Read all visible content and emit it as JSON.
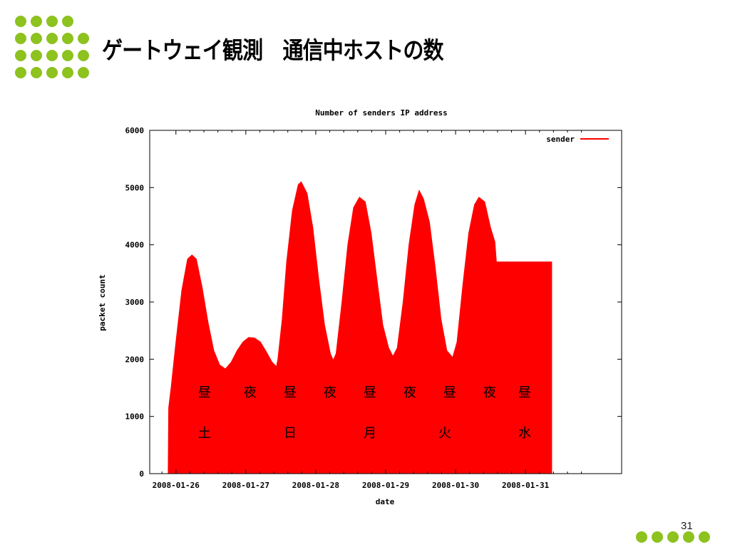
{
  "slide": {
    "title": "ゲートウェイ観測　通信中ホストの数",
    "page_number": "31",
    "accent_color": "#8dc21f",
    "decoration_icon": "dot-grid-icon"
  },
  "chart_data": {
    "type": "area",
    "title": "Number of senders IP address",
    "xlabel": "date",
    "ylabel": "packet count",
    "ylim": [
      0,
      6000
    ],
    "yticks": [
      0,
      1000,
      2000,
      3000,
      4000,
      5000,
      6000
    ],
    "xticks": [
      "2008-01-26",
      "2008-01-27",
      "2008-01-28",
      "2008-01-29",
      "2008-01-30",
      "2008-01-31"
    ],
    "x_unit": "days",
    "xlim": [
      "2008-01-25 15:00",
      "2008-02-01 09:00"
    ],
    "grid": false,
    "legend_position": "top-right",
    "fill_color": "#ff0000",
    "series": [
      {
        "name": "sender",
        "color": "#ff0000",
        "points": [
          [
            "2008-01-25 15:00",
            0
          ],
          [
            "2008-01-25 21:20",
            0
          ],
          [
            "2008-01-25 21:30",
            1150
          ],
          [
            "2008-01-25 22:20",
            1500
          ],
          [
            "2008-01-26 00:00",
            2300
          ],
          [
            "2008-01-26 02:00",
            3200
          ],
          [
            "2008-01-26 04:00",
            3750
          ],
          [
            "2008-01-26 05:30",
            3820
          ],
          [
            "2008-01-26 07:00",
            3750
          ],
          [
            "2008-01-26 09:00",
            3250
          ],
          [
            "2008-01-26 11:00",
            2650
          ],
          [
            "2008-01-26 13:00",
            2150
          ],
          [
            "2008-01-26 15:00",
            1900
          ],
          [
            "2008-01-26 17:00",
            1830
          ],
          [
            "2008-01-26 19:00",
            1950
          ],
          [
            "2008-01-26 21:00",
            2150
          ],
          [
            "2008-01-26 23:00",
            2300
          ],
          [
            "2008-01-27 01:00",
            2380
          ],
          [
            "2008-01-27 03:00",
            2370
          ],
          [
            "2008-01-27 05:00",
            2300
          ],
          [
            "2008-01-27 07:00",
            2130
          ],
          [
            "2008-01-27 09:00",
            1950
          ],
          [
            "2008-01-27 10:30",
            1870
          ],
          [
            "2008-01-27 11:00",
            2000
          ],
          [
            "2008-01-27 12:30",
            2700
          ],
          [
            "2008-01-27 14:00",
            3700
          ],
          [
            "2008-01-27 16:00",
            4600
          ],
          [
            "2008-01-27 18:00",
            5050
          ],
          [
            "2008-01-27 19:00",
            5100
          ],
          [
            "2008-01-27 21:00",
            4900
          ],
          [
            "2008-01-27 23:00",
            4300
          ],
          [
            "2008-01-28 01:00",
            3400
          ],
          [
            "2008-01-28 03:00",
            2600
          ],
          [
            "2008-01-28 05:00",
            2100
          ],
          [
            "2008-01-28 06:00",
            1980
          ],
          [
            "2008-01-28 07:00",
            2100
          ],
          [
            "2008-01-28 09:00",
            3000
          ],
          [
            "2008-01-28 11:00",
            4000
          ],
          [
            "2008-01-28 13:00",
            4650
          ],
          [
            "2008-01-28 15:00",
            4830
          ],
          [
            "2008-01-28 17:00",
            4750
          ],
          [
            "2008-01-28 19:00",
            4200
          ],
          [
            "2008-01-28 21:00",
            3400
          ],
          [
            "2008-01-28 23:00",
            2600
          ],
          [
            "2008-01-29 01:00",
            2200
          ],
          [
            "2008-01-29 02:30",
            2050
          ],
          [
            "2008-01-29 04:00",
            2200
          ],
          [
            "2008-01-29 06:00",
            3000
          ],
          [
            "2008-01-29 08:00",
            4000
          ],
          [
            "2008-01-29 10:00",
            4700
          ],
          [
            "2008-01-29 11:30",
            4950
          ],
          [
            "2008-01-29 13:00",
            4800
          ],
          [
            "2008-01-29 15:00",
            4400
          ],
          [
            "2008-01-29 17:00",
            3600
          ],
          [
            "2008-01-29 19:00",
            2700
          ],
          [
            "2008-01-29 21:00",
            2150
          ],
          [
            "2008-01-29 23:00",
            2030
          ],
          [
            "2008-01-30 00:30",
            2300
          ],
          [
            "2008-01-30 02:30",
            3300
          ],
          [
            "2008-01-30 04:30",
            4200
          ],
          [
            "2008-01-30 06:30",
            4700
          ],
          [
            "2008-01-30 08:00",
            4830
          ],
          [
            "2008-01-30 10:00",
            4750
          ],
          [
            "2008-01-30 12:00",
            4300
          ],
          [
            "2008-01-30 13:30",
            4050
          ],
          [
            "2008-01-30 14:00",
            3700
          ],
          [
            "2008-01-31 09:00",
            3700
          ]
        ]
      }
    ],
    "annotations": {
      "period_row": [
        "昼",
        "夜",
        "昼",
        "夜",
        "昼",
        "夜",
        "昼",
        "夜",
        "昼"
      ],
      "weekday_row": [
        "土",
        "日",
        "月",
        "火",
        "水"
      ]
    }
  }
}
